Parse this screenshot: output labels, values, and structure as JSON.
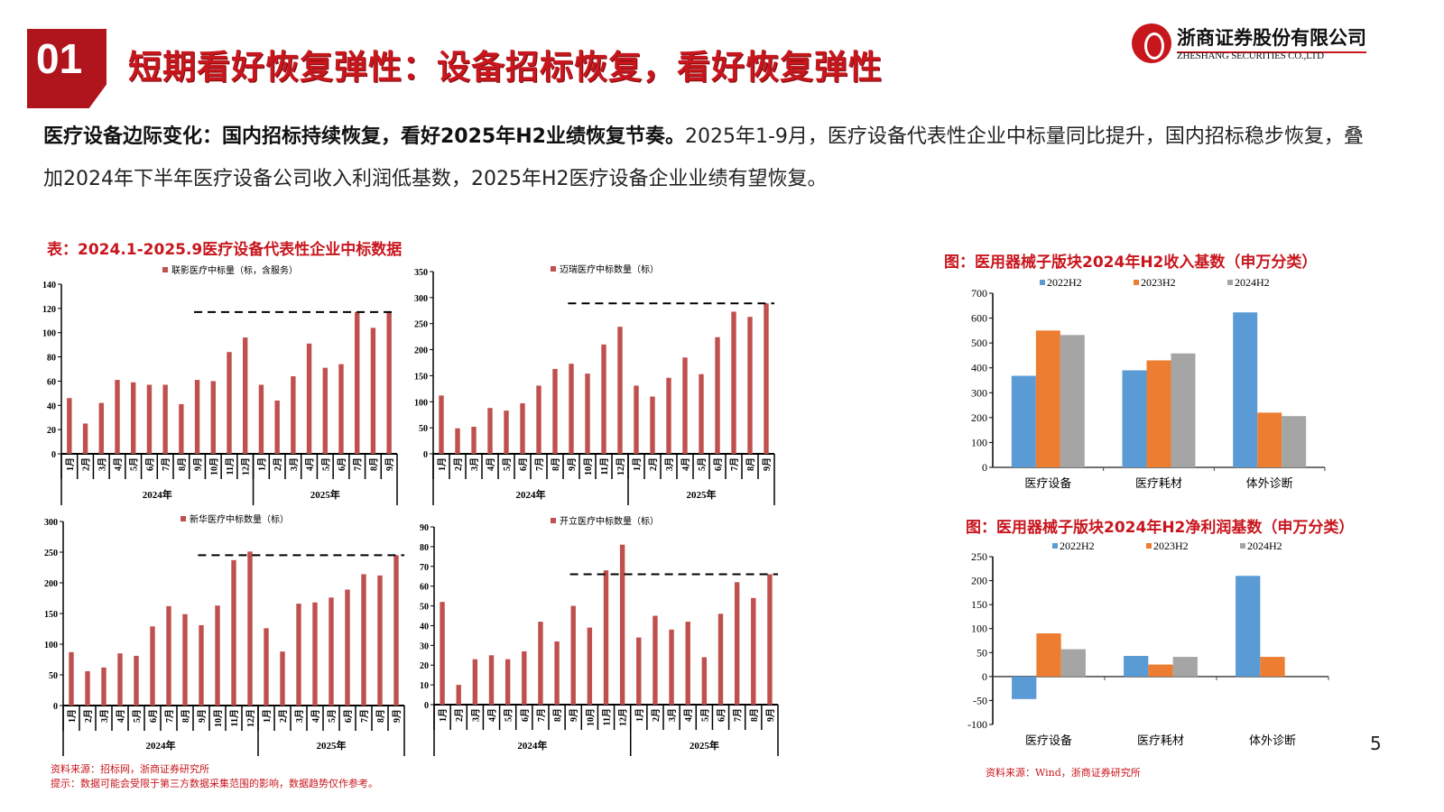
{
  "header": {
    "section_number": "01",
    "title": "短期看好恢复弹性：设备招标恢复，看好恢复弹性",
    "logo_cn": "浙商证券股份有限公司",
    "logo_en": "ZHESHANG SECURITIES CO.,LTD"
  },
  "body": {
    "bold_lead": "医疗设备边际变化：国内招标持续恢复，看好2025年H2业绩恢复节奏。",
    "text": "2025年1-9月，医疗设备代表性企业中标量同比提升，国内招标稳步恢复，叠加2024年下半年医疗设备公司收入利润低基数，2025年H2医疗设备企业业绩有望恢复。"
  },
  "left_panel": {
    "title": "表：2024.1-2025.9医疗设备代表性企业中标数据",
    "source": "资料来源：招标网，浙商证券研究所",
    "note": "提示：数据可能会受限于第三方数据采集范围的影响，数据趋势仅作参考。"
  },
  "right_panel": {
    "title1": "图：医用器械子版块2024年H2收入基数（申万分类）",
    "title2": "图：医用器械子版块2024年H2净利润基数（申万分类）",
    "source": "资料来源：Wind，浙商证券研究所"
  },
  "page_number": "5",
  "colors": {
    "bar_red": "#c0504d",
    "blue": "#5b9bd5",
    "orange": "#ed7d31",
    "gray": "#a5a5a5",
    "brand": "#c8161d"
  },
  "chart_data": [
    {
      "type": "bar",
      "legend": "联影医疗中标量（标，含服务）",
      "categories": [
        "1月",
        "2月",
        "3月",
        "4月",
        "5月",
        "6月",
        "7月",
        "8月",
        "9月",
        "10月",
        "11月",
        "12月",
        "1月",
        "2月",
        "3月",
        "4月",
        "5月",
        "6月",
        "7月",
        "8月",
        "9月"
      ],
      "groups": [
        {
          "label": "2024年",
          "count": 12
        },
        {
          "label": "2025年",
          "count": 9
        }
      ],
      "values": [
        46,
        25,
        42,
        61,
        59,
        57,
        57,
        41,
        61,
        60,
        84,
        96,
        57,
        44,
        64,
        91,
        71,
        74,
        117,
        104,
        117
      ],
      "ylim": [
        0,
        140
      ],
      "yticks": [
        0,
        20,
        40,
        60,
        80,
        100,
        120,
        140
      ],
      "reference_line": {
        "value": 117,
        "from_index": 8
      }
    },
    {
      "type": "bar",
      "legend": "迈瑞医疗中标数量（标）",
      "categories": [
        "1月",
        "2月",
        "3月",
        "4月",
        "5月",
        "6月",
        "7月",
        "8月",
        "9月",
        "10月",
        "11月",
        "12月",
        "1月",
        "2月",
        "3月",
        "4月",
        "5月",
        "6月",
        "7月",
        "8月",
        "9月"
      ],
      "groups": [
        {
          "label": "2024年",
          "count": 12
        },
        {
          "label": "2025年",
          "count": 9
        }
      ],
      "values": [
        112,
        49,
        52,
        88,
        83,
        97,
        131,
        163,
        173,
        154,
        210,
        244,
        131,
        110,
        146,
        185,
        153,
        224,
        273,
        263,
        289
      ],
      "ylim": [
        0,
        350
      ],
      "yticks": [
        0,
        50,
        100,
        150,
        200,
        250,
        300,
        350
      ],
      "reference_line": {
        "value": 289,
        "from_index": 8
      }
    },
    {
      "type": "bar",
      "legend": "新华医疗中标数量（标）",
      "categories": [
        "1月",
        "2月",
        "3月",
        "4月",
        "5月",
        "6月",
        "7月",
        "8月",
        "9月",
        "10月",
        "11月",
        "12月",
        "1月",
        "2月",
        "3月",
        "4月",
        "5月",
        "6月",
        "7月",
        "8月",
        "9月"
      ],
      "groups": [
        {
          "label": "2024年",
          "count": 12
        },
        {
          "label": "2025年",
          "count": 9
        }
      ],
      "values": [
        87,
        56,
        62,
        85,
        81,
        129,
        162,
        149,
        131,
        163,
        237,
        251,
        126,
        88,
        166,
        168,
        176,
        189,
        214,
        212,
        245
      ],
      "ylim": [
        0,
        300
      ],
      "yticks": [
        0,
        50,
        100,
        150,
        200,
        250,
        300
      ],
      "reference_line": {
        "value": 245,
        "from_index": 8
      }
    },
    {
      "type": "bar",
      "legend": "开立医疗中标数量（标）",
      "categories": [
        "1月",
        "2月",
        "3月",
        "4月",
        "5月",
        "6月",
        "7月",
        "8月",
        "9月",
        "10月",
        "11月",
        "12月",
        "1月",
        "2月",
        "3月",
        "4月",
        "5月",
        "6月",
        "7月",
        "8月",
        "9月"
      ],
      "groups": [
        {
          "label": "2024年",
          "count": 12
        },
        {
          "label": "2025年",
          "count": 9
        }
      ],
      "values": [
        52,
        10,
        23,
        25,
        23,
        27,
        42,
        32,
        50,
        39,
        68,
        81,
        34,
        45,
        38,
        42,
        24,
        46,
        62,
        54,
        66
      ],
      "ylim": [
        0,
        90
      ],
      "yticks": [
        0,
        10,
        20,
        30,
        40,
        50,
        60,
        70,
        80,
        90
      ],
      "reference_line": {
        "value": 66,
        "from_index": 8
      }
    },
    {
      "type": "bar",
      "title": "医用器械子版块2024年H2收入基数（申万分类）",
      "categories": [
        "医疗设备",
        "医疗耗材",
        "体外诊断"
      ],
      "series": [
        {
          "name": "2022H2",
          "values": [
            368,
            390,
            623
          ]
        },
        {
          "name": "2023H2",
          "values": [
            550,
            430,
            220
          ]
        },
        {
          "name": "2024H2",
          "values": [
            532,
            458,
            206
          ]
        }
      ],
      "ylim": [
        0,
        700
      ],
      "yticks": [
        0,
        100,
        200,
        300,
        400,
        500,
        600,
        700
      ]
    },
    {
      "type": "bar",
      "title": "医用器械子版块2024年H2净利润基数（申万分类）",
      "categories": [
        "医疗设备",
        "医疗耗材",
        "体外诊断"
      ],
      "series": [
        {
          "name": "2022H2",
          "values": [
            -47,
            43,
            210
          ]
        },
        {
          "name": "2023H2",
          "values": [
            90,
            25,
            41
          ]
        },
        {
          "name": "2024H2",
          "values": [
            57,
            41,
            null
          ]
        }
      ],
      "ylim": [
        -100,
        250
      ],
      "yticks": [
        -100,
        -50,
        0,
        50,
        100,
        150,
        200,
        250
      ]
    }
  ]
}
